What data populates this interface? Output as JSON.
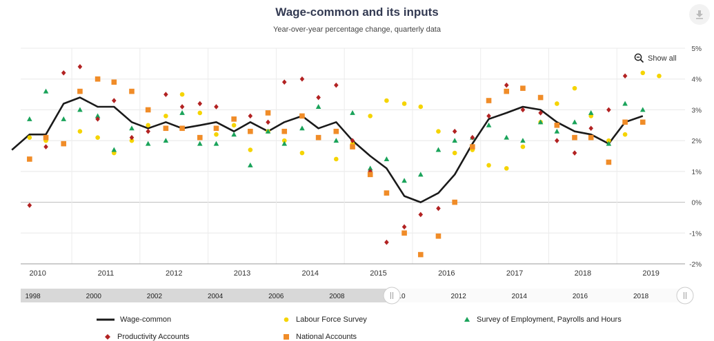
{
  "chart_data": {
    "type": "line",
    "title": "Wage-common and its inputs",
    "subtitle": "Year-over-year percentage change, quarterly data",
    "ylim": [
      -2,
      5
    ],
    "y_ticks": [
      "5%",
      "4%",
      "3%",
      "2%",
      "1%",
      "0%",
      "-1%",
      "-2%"
    ],
    "x_range": [
      2009.75,
      2019.5
    ],
    "x_ticks": [
      "2010",
      "2011",
      "2012",
      "2013",
      "2014",
      "2015",
      "2016",
      "2017",
      "2018",
      "2019"
    ],
    "navigator_ticks": [
      "1998",
      "2000",
      "2002",
      "2004",
      "2006",
      "2008",
      "2010",
      "2012",
      "2014",
      "2016",
      "2018"
    ],
    "series": [
      {
        "name": "Wage-common",
        "type": "line",
        "color": "#1a1a1a",
        "x": [
          2009.62,
          2009.88,
          2010.12,
          2010.38,
          2010.62,
          2010.88,
          2011.12,
          2011.38,
          2011.62,
          2011.88,
          2012.12,
          2012.38,
          2012.62,
          2012.88,
          2013.12,
          2013.38,
          2013.62,
          2013.88,
          2014.12,
          2014.38,
          2014.62,
          2014.88,
          2015.12,
          2015.38,
          2015.62,
          2015.88,
          2016.12,
          2016.38,
          2016.62,
          2016.88,
          2017.12,
          2017.38,
          2017.62,
          2017.88,
          2018.12,
          2018.38,
          2018.62,
          2018.88,
          2019.12
        ],
        "values": [
          1.7,
          2.2,
          2.2,
          3.2,
          3.4,
          3.1,
          3.1,
          2.6,
          2.4,
          2.6,
          2.4,
          2.5,
          2.6,
          2.3,
          2.6,
          2.3,
          2.6,
          2.8,
          2.4,
          2.6,
          2.0,
          1.5,
          1.1,
          0.2,
          0.0,
          0.3,
          0.9,
          1.9,
          2.7,
          2.9,
          3.1,
          3.0,
          2.6,
          2.3,
          2.2,
          1.9,
          2.6,
          2.8,
          null
        ]
      },
      {
        "name": "Labour Force Survey",
        "type": "scatter",
        "marker": "circle",
        "color": "#f5d400",
        "x": [
          2009.88,
          2010.12,
          2010.38,
          2010.62,
          2010.88,
          2011.12,
          2011.38,
          2011.62,
          2011.88,
          2012.12,
          2012.38,
          2012.62,
          2012.88,
          2013.12,
          2013.38,
          2013.62,
          2013.88,
          2014.12,
          2014.38,
          2014.62,
          2014.88,
          2015.12,
          2015.38,
          2015.62,
          2015.88,
          2016.12,
          2016.38,
          2016.62,
          2016.88,
          2017.12,
          2017.38,
          2017.62,
          2017.88,
          2018.12,
          2018.38,
          2018.62,
          2018.88,
          2019.12
        ],
        "values": [
          2.1,
          2.0,
          1.9,
          2.3,
          2.1,
          1.6,
          2.0,
          2.5,
          2.8,
          3.5,
          2.9,
          2.2,
          2.5,
          1.7,
          2.3,
          2.0,
          1.6,
          2.1,
          1.4,
          1.9,
          2.8,
          3.3,
          3.2,
          3.1,
          2.3,
          1.6,
          1.7,
          1.2,
          1.1,
          1.8,
          2.6,
          3.2,
          3.7,
          2.8,
          2.0,
          2.2,
          4.2,
          4.1
        ]
      },
      {
        "name": "Survey of Employment, Payrolls and Hours",
        "type": "scatter",
        "marker": "triangle",
        "color": "#1aa35a",
        "x": [
          2009.88,
          2010.12,
          2010.38,
          2010.62,
          2010.88,
          2011.12,
          2011.38,
          2011.62,
          2011.88,
          2012.12,
          2012.38,
          2012.62,
          2012.88,
          2013.12,
          2013.38,
          2013.62,
          2013.88,
          2014.12,
          2014.38,
          2014.62,
          2014.88,
          2015.12,
          2015.38,
          2015.62,
          2015.88,
          2016.12,
          2016.38,
          2016.62,
          2016.88,
          2017.12,
          2017.38,
          2017.62,
          2017.88,
          2018.12,
          2018.38,
          2018.62,
          2018.88,
          2019.12
        ],
        "values": [
          2.7,
          3.6,
          2.7,
          3.0,
          2.8,
          1.7,
          2.4,
          1.9,
          2.0,
          2.9,
          1.9,
          1.9,
          2.2,
          1.2,
          2.3,
          1.9,
          2.4,
          3.1,
          2.0,
          2.9,
          1.1,
          1.4,
          0.7,
          0.9,
          1.7,
          2.0,
          2.1,
          2.5,
          2.1,
          2.0,
          2.6,
          2.3,
          2.6,
          2.9,
          1.9,
          3.2,
          3.0,
          null
        ]
      },
      {
        "name": "Productivity Accounts",
        "type": "scatter",
        "marker": "diamond",
        "color": "#b22222",
        "x": [
          2009.88,
          2010.12,
          2010.38,
          2010.62,
          2010.88,
          2011.12,
          2011.38,
          2011.62,
          2011.88,
          2012.12,
          2012.38,
          2012.62,
          2012.88,
          2013.12,
          2013.38,
          2013.62,
          2013.88,
          2014.12,
          2014.38,
          2014.62,
          2014.88,
          2015.12,
          2015.38,
          2015.62,
          2015.88,
          2016.12,
          2016.38,
          2016.62,
          2016.88,
          2017.12,
          2017.38,
          2017.62,
          2017.88,
          2018.12,
          2018.38,
          2018.62,
          2018.88,
          2019.12
        ],
        "values": [
          -0.1,
          1.8,
          4.2,
          4.4,
          2.7,
          3.3,
          2.1,
          2.3,
          3.5,
          3.1,
          3.2,
          3.1,
          2.7,
          2.8,
          2.6,
          3.9,
          4.0,
          3.4,
          3.8,
          2.0,
          1.0,
          -1.3,
          -0.8,
          -0.4,
          -0.2,
          2.3,
          2.1,
          2.8,
          3.8,
          3.0,
          2.9,
          2.0,
          1.6,
          2.4,
          3.0,
          4.1,
          null,
          null
        ]
      },
      {
        "name": "National Accounts",
        "type": "scatter",
        "marker": "square",
        "color": "#f08c28",
        "x": [
          2009.88,
          2010.12,
          2010.38,
          2010.62,
          2010.88,
          2011.12,
          2011.38,
          2011.62,
          2011.88,
          2012.12,
          2012.38,
          2012.62,
          2012.88,
          2013.12,
          2013.38,
          2013.62,
          2013.88,
          2014.12,
          2014.38,
          2014.62,
          2014.88,
          2015.12,
          2015.38,
          2015.62,
          2015.88,
          2016.12,
          2016.38,
          2016.62,
          2016.88,
          2017.12,
          2017.38,
          2017.62,
          2017.88,
          2018.12,
          2018.38,
          2018.62,
          2018.88,
          2019.12
        ],
        "values": [
          1.4,
          2.1,
          1.9,
          3.6,
          4.0,
          3.9,
          3.6,
          3.0,
          2.4,
          2.4,
          2.1,
          2.4,
          2.7,
          2.3,
          2.9,
          2.3,
          2.8,
          2.1,
          2.3,
          1.8,
          0.9,
          0.3,
          -1.0,
          -1.7,
          -1.1,
          0.0,
          1.8,
          3.3,
          3.6,
          3.7,
          3.4,
          2.5,
          2.1,
          2.1,
          1.3,
          2.6,
          2.6,
          null
        ]
      }
    ]
  },
  "controls": {
    "show_all_label": "Show all",
    "download_icon": "download-icon",
    "zoom_icon": "zoom-out-icon"
  },
  "legend": [
    {
      "label": "Wage-common",
      "marker": "line",
      "color": "#1a1a1a"
    },
    {
      "label": "Labour Force Survey",
      "marker": "circle",
      "color": "#f5d400"
    },
    {
      "label": "Survey of Employment, Payrolls and Hours",
      "marker": "triangle",
      "color": "#1aa35a"
    },
    {
      "label": "Productivity Accounts",
      "marker": "diamond",
      "color": "#b22222"
    },
    {
      "label": "National Accounts",
      "marker": "square",
      "color": "#f08c28"
    }
  ]
}
